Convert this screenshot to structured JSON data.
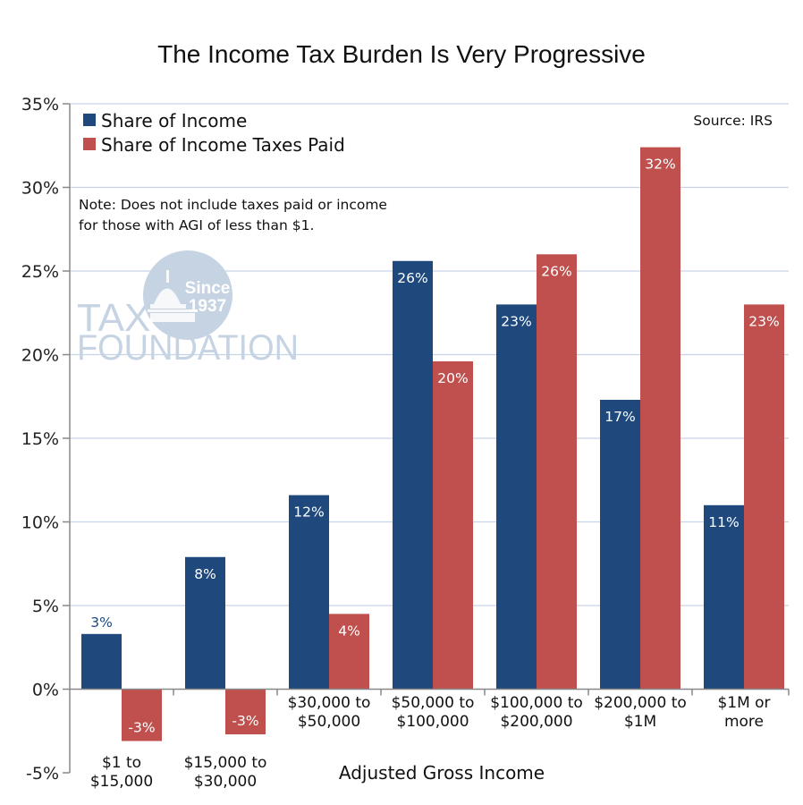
{
  "chart_data": {
    "type": "bar",
    "title": "The Income Tax Burden Is Very Progressive",
    "xlabel": "Adjusted Gross Income",
    "ylabel": "",
    "ylim": [
      -5,
      35
    ],
    "yticks": [
      35,
      30,
      25,
      20,
      15,
      10,
      5,
      0,
      -5
    ],
    "ytick_labels": [
      "35%",
      "30%",
      "25%",
      "20%",
      "15%",
      "10%",
      "5%",
      "0%",
      "-5%"
    ],
    "grid": true,
    "legend_position": "top-left",
    "categories": [
      [
        "$1 to",
        "$15,000"
      ],
      [
        "$15,000 to",
        "$30,000"
      ],
      [
        "$30,000 to",
        "$50,000"
      ],
      [
        "$50,000 to",
        "$100,000"
      ],
      [
        "$100,000 to",
        "$200,000"
      ],
      [
        "$200,000 to",
        "$1M"
      ],
      [
        "$1M or",
        "more"
      ]
    ],
    "series": [
      {
        "name": "Share of Income",
        "color": "#1f497d",
        "values": [
          3.3,
          7.9,
          11.6,
          25.6,
          23.0,
          17.3,
          11.0
        ],
        "labels": [
          "3%",
          "8%",
          "12%",
          "26%",
          "23%",
          "17%",
          "11%"
        ]
      },
      {
        "name": "Share of Income Taxes Paid",
        "color": "#c0504d",
        "values": [
          -3.1,
          -2.7,
          4.5,
          19.6,
          26.0,
          32.4,
          23.0
        ],
        "labels": [
          "-3%",
          "-3%",
          "4%",
          "20%",
          "26%",
          "32%",
          "23%"
        ]
      }
    ],
    "annotations": {
      "source": "Source: IRS",
      "note_lines": [
        "Note: Does not include taxes paid or income",
        "for those with AGI of less than $1."
      ]
    }
  },
  "watermark": {
    "line1": "TAX",
    "line2": "FOUNDATION",
    "badge_line1": "Since",
    "badge_line2": "1937"
  },
  "colors": {
    "grid": "#c6d4ea",
    "axis": "#888888",
    "watermark": "#c5d3e2"
  }
}
